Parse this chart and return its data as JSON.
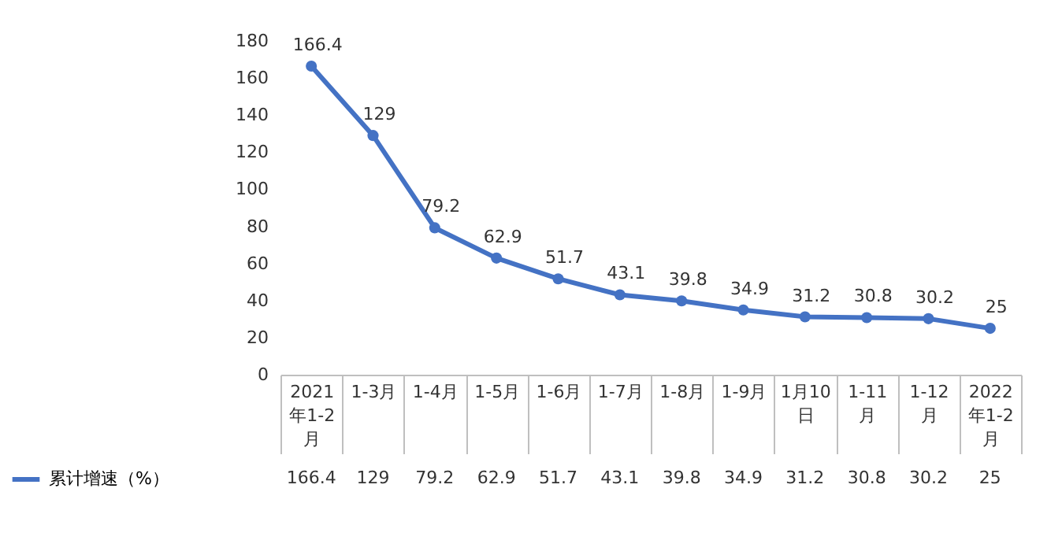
{
  "chart_data": {
    "type": "line",
    "categories": [
      "2021年1-2月",
      "1-3月",
      "1-4月",
      "1-5月",
      "1-6月",
      "1-7月",
      "1-8月",
      "1-9月",
      "1月10日",
      "1-11月",
      "1-12月",
      "2022年1-2月"
    ],
    "series": [
      {
        "name": "累计增速（%）",
        "color": "#4472c4",
        "values": [
          166.4,
          129,
          79.2,
          62.9,
          51.7,
          43.1,
          39.8,
          34.9,
          31.2,
          30.8,
          30.2,
          25
        ],
        "value_labels": [
          "166.4",
          "129",
          "79.2",
          "62.9",
          "51.7",
          "43.1",
          "39.8",
          "34.9",
          "31.2",
          "30.8",
          "30.2",
          "25"
        ]
      }
    ],
    "ylim": [
      0,
      180
    ],
    "yticks": [
      0,
      20,
      40,
      60,
      80,
      100,
      120,
      140,
      160,
      180
    ],
    "grid": false,
    "marker": "circle",
    "line_style": "solid",
    "data_labels": true,
    "legend": "bottom left"
  }
}
